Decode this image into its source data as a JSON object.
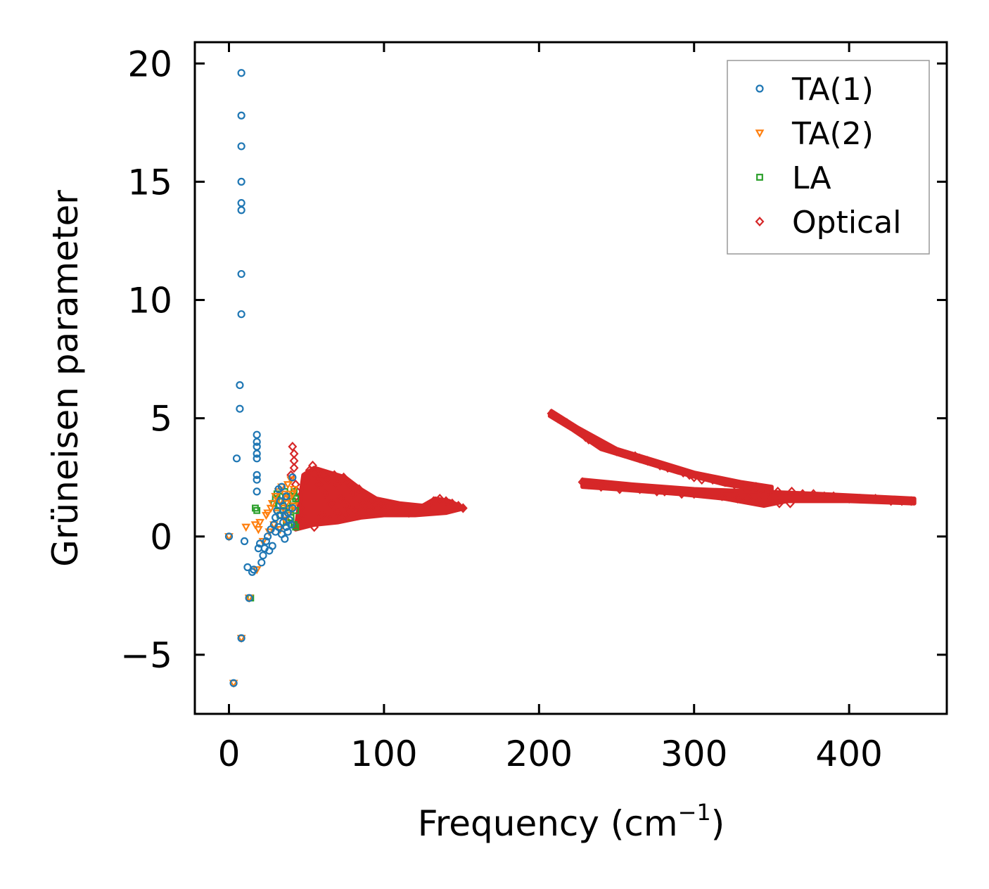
{
  "chart_data": {
    "type": "scatter",
    "title": "",
    "xlabel": "Frequency (cm",
    "xlabel_sup": "−1",
    "xlabel_close": ")",
    "ylabel": "Grüneisen parameter",
    "xlim": [
      -22,
      463
    ],
    "ylim": [
      -7.5,
      20.9
    ],
    "xticks": [
      0,
      100,
      200,
      300,
      400
    ],
    "xtick_labels": [
      "0",
      "100",
      "200",
      "300",
      "400"
    ],
    "yticks": [
      -5,
      0,
      5,
      10,
      15,
      20
    ],
    "ytick_labels": [
      "−5",
      "0",
      "5",
      "10",
      "15",
      "20"
    ],
    "legend_position": "top-right",
    "series": [
      {
        "name": "TA(1)",
        "marker": "circle",
        "color": "#1f77b4",
        "points": [
          [
            0,
            0
          ],
          [
            3,
            -6.2
          ],
          [
            5,
            3.3
          ],
          [
            7,
            6.4
          ],
          [
            7,
            5.4
          ],
          [
            8,
            19.6
          ],
          [
            8,
            17.8
          ],
          [
            8,
            16.5
          ],
          [
            8,
            15.0
          ],
          [
            8,
            14.1
          ],
          [
            8,
            13.8
          ],
          [
            8,
            11.1
          ],
          [
            8,
            9.4
          ],
          [
            8,
            -4.3
          ],
          [
            10,
            -0.2
          ],
          [
            12,
            -1.3
          ],
          [
            13,
            -2.6
          ],
          [
            15,
            -1.5
          ],
          [
            16,
            -1.4
          ],
          [
            18,
            4.3
          ],
          [
            18,
            4.0
          ],
          [
            18,
            3.8
          ],
          [
            18,
            3.5
          ],
          [
            18,
            3.3
          ],
          [
            18,
            2.6
          ],
          [
            18,
            2.4
          ],
          [
            18,
            1.9
          ],
          [
            19,
            -0.5
          ],
          [
            20,
            -0.3
          ],
          [
            21,
            -1.1
          ],
          [
            22,
            -0.8
          ],
          [
            23,
            -0.5
          ],
          [
            24,
            -0.2
          ],
          [
            25,
            0.0
          ],
          [
            26,
            -0.6
          ],
          [
            27,
            0.3
          ],
          [
            28,
            -0.4
          ],
          [
            29,
            0.5
          ],
          [
            30,
            0.2
          ],
          [
            30,
            0.8
          ],
          [
            31,
            1.1
          ],
          [
            32,
            0.4
          ],
          [
            32,
            2.0
          ],
          [
            33,
            0.9
          ],
          [
            33,
            1.5
          ],
          [
            34,
            0.1
          ],
          [
            34,
            2.1
          ],
          [
            35,
            0.6
          ],
          [
            35,
            1.3
          ],
          [
            36,
            -0.1
          ],
          [
            36,
            0.9
          ],
          [
            37,
            0.4
          ],
          [
            37,
            1.7
          ],
          [
            38,
            0.2
          ],
          [
            38,
            1.0
          ],
          [
            39,
            0.7
          ],
          [
            40,
            0.5
          ],
          [
            41,
            2.5
          ],
          [
            41,
            1.2
          ]
        ]
      },
      {
        "name": "TA(2)",
        "marker": "triangle-down",
        "color": "#ff7f0e",
        "points": [
          [
            0,
            0
          ],
          [
            3,
            -6.2
          ],
          [
            8,
            -4.3
          ],
          [
            11,
            0.4
          ],
          [
            13,
            -2.6
          ],
          [
            17,
            0.5
          ],
          [
            18,
            -1.4
          ],
          [
            19,
            0.3
          ],
          [
            20,
            0.6
          ],
          [
            22,
            -0.2
          ],
          [
            24,
            0.9
          ],
          [
            25,
            1.0
          ],
          [
            26,
            0.2
          ],
          [
            27,
            1.2
          ],
          [
            28,
            1.4
          ],
          [
            29,
            0.5
          ],
          [
            30,
            1.7
          ],
          [
            31,
            1.0
          ],
          [
            32,
            1.9
          ],
          [
            33,
            0.3
          ],
          [
            33,
            1.5
          ],
          [
            34,
            2.1
          ],
          [
            35,
            1.2
          ],
          [
            36,
            0.7
          ],
          [
            36,
            1.8
          ],
          [
            37,
            1.4
          ],
          [
            38,
            2.2
          ],
          [
            38,
            0.9
          ],
          [
            39,
            1.6
          ],
          [
            40,
            1.1
          ],
          [
            40,
            2.4
          ],
          [
            41,
            1.8
          ],
          [
            42,
            1.3
          ],
          [
            42,
            2.0
          ]
        ]
      },
      {
        "name": "LA",
        "marker": "square",
        "color": "#2ca02c",
        "points": [
          [
            14,
            -2.6
          ],
          [
            17,
            1.2
          ],
          [
            18,
            1.1
          ],
          [
            29,
            1.4
          ],
          [
            30,
            1.6
          ],
          [
            31,
            1.8
          ],
          [
            32,
            1.3
          ],
          [
            33,
            0.9
          ],
          [
            33,
            1.7
          ],
          [
            34,
            1.5
          ],
          [
            35,
            1.1
          ],
          [
            36,
            1.9
          ],
          [
            37,
            0.6
          ],
          [
            38,
            1.4
          ],
          [
            39,
            1.2
          ],
          [
            40,
            1.7
          ],
          [
            40,
            0.8
          ],
          [
            41,
            1.5
          ],
          [
            42,
            0.5
          ],
          [
            42,
            1.9
          ],
          [
            43,
            1.1
          ],
          [
            43,
            0.4
          ],
          [
            43,
            1.6
          ]
        ]
      },
      {
        "name": "Optical",
        "marker": "diamond",
        "color": "#d62728",
        "points": [
          [
            41,
            3.8
          ],
          [
            42,
            3.5
          ],
          [
            42,
            3.2
          ],
          [
            42,
            2.9
          ],
          [
            40,
            2.6
          ],
          [
            43,
            2.2
          ],
          [
            44,
            1.9
          ],
          [
            45,
            1.5
          ],
          [
            46,
            1.2
          ],
          [
            47,
            0.9
          ],
          [
            48,
            0.6
          ],
          [
            50,
            2.4
          ],
          [
            52,
            2.8
          ],
          [
            54,
            3.0
          ],
          [
            56,
            2.6
          ],
          [
            58,
            2.2
          ],
          [
            60,
            2.6
          ],
          [
            62,
            1.8
          ],
          [
            64,
            2.4
          ],
          [
            66,
            1.4
          ],
          [
            68,
            2.6
          ],
          [
            70,
            2.2
          ],
          [
            72,
            1.6
          ],
          [
            74,
            2.5
          ],
          [
            76,
            1.3
          ],
          [
            78,
            2.2
          ],
          [
            80,
            1.8
          ],
          [
            82,
            1.1
          ],
          [
            84,
            2.0
          ],
          [
            86,
            1.4
          ],
          [
            88,
            1.7
          ],
          [
            90,
            1.1
          ],
          [
            92,
            1.5
          ],
          [
            95,
            1.2
          ],
          [
            98,
            1.4
          ],
          [
            100,
            1.1
          ],
          [
            104,
            1.3
          ],
          [
            108,
            1.1
          ],
          [
            112,
            1.2
          ],
          [
            116,
            1.0
          ],
          [
            120,
            1.1
          ],
          [
            125,
            1.2
          ],
          [
            128,
            1.3
          ],
          [
            132,
            1.5
          ],
          [
            136,
            1.6
          ],
          [
            140,
            1.5
          ],
          [
            144,
            1.4
          ],
          [
            148,
            1.3
          ],
          [
            151,
            1.2
          ],
          [
            55,
            0.4
          ],
          [
            60,
            0.9
          ],
          [
            65,
            0.7
          ],
          [
            70,
            1.0
          ],
          [
            75,
            0.9
          ],
          [
            208,
            5.2
          ],
          [
            212,
            5.0
          ],
          [
            215,
            4.9
          ],
          [
            218,
            4.8
          ],
          [
            230,
            4.2
          ],
          [
            232,
            4.1
          ],
          [
            236,
            4.0
          ],
          [
            250,
            3.6
          ],
          [
            262,
            3.4
          ],
          [
            265,
            3.3
          ],
          [
            270,
            3.2
          ],
          [
            278,
            3.0
          ],
          [
            283,
            2.9
          ],
          [
            293,
            2.7
          ],
          [
            297,
            2.6
          ],
          [
            300,
            2.5
          ],
          [
            305,
            2.4
          ],
          [
            312,
            2.4
          ],
          [
            320,
            2.3
          ],
          [
            326,
            2.2
          ],
          [
            333,
            2.1
          ],
          [
            340,
            2.1
          ],
          [
            343,
            2.0
          ],
          [
            348,
            1.9
          ],
          [
            354,
            1.9
          ],
          [
            363,
            1.9
          ],
          [
            370,
            1.8
          ],
          [
            377,
            1.8
          ],
          [
            384,
            1.7
          ],
          [
            390,
            1.7
          ],
          [
            400,
            1.6
          ],
          [
            407,
            1.6
          ],
          [
            417,
            1.6
          ],
          [
            427,
            1.5
          ],
          [
            434,
            1.5
          ],
          [
            440,
            1.5
          ],
          [
            228,
            2.3
          ],
          [
            232,
            2.2
          ],
          [
            235,
            2.2
          ],
          [
            240,
            2.1
          ],
          [
            252,
            2.0
          ],
          [
            265,
            2.0
          ],
          [
            276,
            1.9
          ],
          [
            281,
            1.9
          ],
          [
            292,
            1.8
          ],
          [
            300,
            1.8
          ],
          [
            308,
            1.8
          ],
          [
            318,
            1.7
          ],
          [
            328,
            1.6
          ],
          [
            335,
            1.6
          ],
          [
            342,
            1.5
          ],
          [
            349,
            1.5
          ],
          [
            355,
            1.4
          ],
          [
            362,
            1.4
          ]
        ]
      }
    ],
    "dense_regions": [
      {
        "series": "Optical",
        "polygon": [
          [
            43,
            0.3
          ],
          [
            48,
            2.6
          ],
          [
            55,
            2.9
          ],
          [
            65,
            2.7
          ],
          [
            75,
            2.5
          ],
          [
            85,
            2.0
          ],
          [
            95,
            1.6
          ],
          [
            110,
            1.4
          ],
          [
            125,
            1.3
          ],
          [
            133,
            1.6
          ],
          [
            142,
            1.5
          ],
          [
            152,
            1.2
          ],
          [
            140,
            1.0
          ],
          [
            120,
            0.9
          ],
          [
            100,
            0.9
          ],
          [
            85,
            0.8
          ],
          [
            70,
            0.6
          ],
          [
            55,
            0.5
          ]
        ]
      },
      {
        "series": "Optical",
        "polygon": [
          [
            228,
            2.4
          ],
          [
            260,
            2.2
          ],
          [
            300,
            2.0
          ],
          [
            340,
            1.9
          ],
          [
            380,
            1.8
          ],
          [
            442,
            1.6
          ],
          [
            442,
            1.4
          ],
          [
            400,
            1.5
          ],
          [
            360,
            1.5
          ],
          [
            345,
            1.3
          ],
          [
            320,
            1.6
          ],
          [
            290,
            1.8
          ],
          [
            250,
            2.0
          ],
          [
            228,
            2.1
          ]
        ]
      },
      {
        "series": "Optical",
        "polygon": [
          [
            208,
            5.3
          ],
          [
            225,
            4.6
          ],
          [
            250,
            3.7
          ],
          [
            280,
            3.1
          ],
          [
            300,
            2.7
          ],
          [
            330,
            2.3
          ],
          [
            350,
            2.1
          ],
          [
            350,
            1.9
          ],
          [
            320,
            2.2
          ],
          [
            290,
            2.7
          ],
          [
            260,
            3.3
          ],
          [
            240,
            3.7
          ],
          [
            222,
            4.5
          ],
          [
            207,
            5.1
          ]
        ]
      }
    ]
  }
}
